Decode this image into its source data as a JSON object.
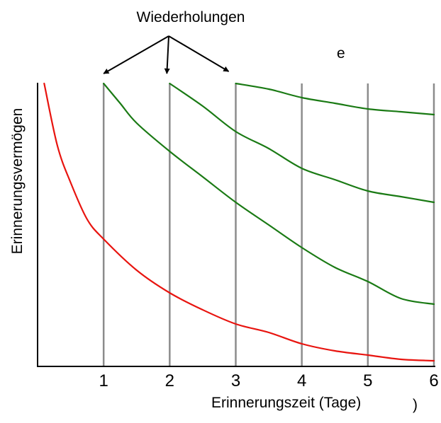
{
  "chart_data": {
    "type": "line",
    "title": "",
    "xlabel": "Erinnerungszeit (Tage)",
    "ylabel": "Erinnerungsvermögen",
    "annotation": "Wiederholungen",
    "stray_marks": [
      "e",
      ")"
    ],
    "xlim": [
      0,
      6
    ],
    "ylim": [
      0,
      100
    ],
    "x_ticks": [
      "1",
      "2",
      "3",
      "4",
      "5",
      "6"
    ],
    "x_tick_values": [
      1,
      2,
      3,
      4,
      5,
      6
    ],
    "vertical_gridlines": [
      1,
      2,
      3,
      4,
      5,
      6
    ],
    "arrow_targets": [
      1,
      2,
      3
    ],
    "grid": true,
    "colors": {
      "forgetting": "#e8140f",
      "review": "#1a7a14",
      "gridline": "#8c8c8c",
      "axis": "#000000"
    },
    "series": [
      {
        "color": "#e8140f",
        "x": [
          0.1,
          0.3,
          0.5,
          0.75,
          1.0,
          1.5,
          2.0,
          2.5,
          3.0,
          3.5,
          4.0,
          4.5,
          5.0,
          5.5,
          6.0
        ],
        "y": [
          100,
          78,
          65,
          52,
          45,
          34,
          26,
          20,
          15,
          12,
          8,
          5.5,
          4,
          2.5,
          2
        ]
      },
      {
        "color": "#1a7a14",
        "x": [
          1.0,
          1.25,
          1.5,
          2.0,
          2.5,
          3.0,
          3.5,
          4.0,
          4.5,
          5.0,
          5.5,
          6.0
        ],
        "y": [
          100,
          93,
          86,
          76,
          67,
          58,
          50,
          42,
          35,
          30,
          24,
          22
        ]
      },
      {
        "color": "#1a7a14",
        "x": [
          2.0,
          2.5,
          3.0,
          3.5,
          4.0,
          4.5,
          5.0,
          5.5,
          6.0
        ],
        "y": [
          100,
          92,
          83,
          77,
          70,
          66,
          62,
          60,
          58
        ]
      },
      {
        "color": "#1a7a14",
        "x": [
          3.0,
          3.5,
          4.0,
          4.5,
          5.0,
          5.5,
          6.0
        ],
        "y": [
          100,
          98,
          95,
          93,
          91,
          90,
          89
        ]
      }
    ]
  }
}
